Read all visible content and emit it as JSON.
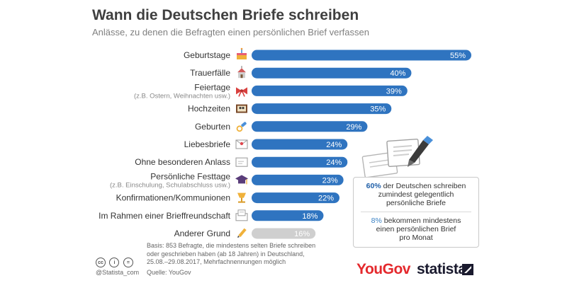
{
  "header": {
    "title": "Wann die Deutschen Briefe schreiben",
    "subtitle": "Anlässe, zu denen die Befragten einen persönlichen Brief verfassen"
  },
  "chart_data": {
    "type": "bar",
    "orientation": "horizontal",
    "title": "Wann die Deutschen Briefe schreiben",
    "subtitle": "Anlässe, zu denen die Befragten einen persönlichen Brief verfassen",
    "categories": [
      {
        "label": "Geburtstage",
        "sublabel": "",
        "icon": "cake-icon"
      },
      {
        "label": "Trauerfälle",
        "sublabel": "",
        "icon": "church-icon"
      },
      {
        "label": "Feiertage",
        "sublabel": "(z.B. Ostern, Weihnachten usw.)",
        "icon": "bow-icon"
      },
      {
        "label": "Hochzeiten",
        "sublabel": "",
        "icon": "wedding-picture-icon"
      },
      {
        "label": "Geburten",
        "sublabel": "",
        "icon": "pacifier-icon"
      },
      {
        "label": "Liebesbriefe",
        "sublabel": "",
        "icon": "love-letter-icon"
      },
      {
        "label": "Ohne besonderen Anlass",
        "sublabel": "",
        "icon": "envelope-icon"
      },
      {
        "label": "Persönliche Festtage",
        "sublabel": "(z.B. Einschulung, Schulabschluss usw.)",
        "icon": "graduation-cap-icon"
      },
      {
        "label": "Konfirmationen/Kommunionen",
        "sublabel": "",
        "icon": "chalice-icon"
      },
      {
        "label": "Im Rahmen einer Brieffreundschaft",
        "sublabel": "",
        "icon": "open-letter-icon"
      },
      {
        "label": "Anderer Grund",
        "sublabel": "",
        "icon": "pencil-icon"
      }
    ],
    "values": [
      55,
      40,
      39,
      35,
      29,
      24,
      24,
      23,
      22,
      18,
      16
    ],
    "value_labels": [
      "55%",
      "40%",
      "39%",
      "35%",
      "29%",
      "24%",
      "24%",
      "23%",
      "22%",
      "18%",
      "16%"
    ],
    "unit": "%",
    "xlim": [
      0,
      55
    ],
    "grid": false,
    "colors": {
      "bar": "#2f74c0",
      "bar_other": "#cfcfcf",
      "value_text": "#ffffff"
    }
  },
  "callout": {
    "line1_pct": "60%",
    "line1_text": "der Deutschen schreiben",
    "line2_text": "zumindest gelegentlich",
    "line3_text": "persönliche Briefe",
    "line4_pct": "8%",
    "line4_text": "bekommen mindestens",
    "line5_text": "einen persönlichen Brief",
    "line6_text": "pro Monat"
  },
  "footer": {
    "note_line1": "Basis: 853 Befragte, die mindestens selten Briefe schreiben",
    "note_line2": "oder geschrieben haben (ab 18 Jahren) in Deutschland,",
    "note_line3": "25.08.–29.08.2017, Mehrfachnennungen möglich",
    "source": "Quelle: YouGov",
    "handle": "@Statista_com",
    "cc1": "cc",
    "cc2": "i",
    "cc3": "="
  },
  "brands": {
    "yougov": "YouGov",
    "statista": "statista"
  }
}
